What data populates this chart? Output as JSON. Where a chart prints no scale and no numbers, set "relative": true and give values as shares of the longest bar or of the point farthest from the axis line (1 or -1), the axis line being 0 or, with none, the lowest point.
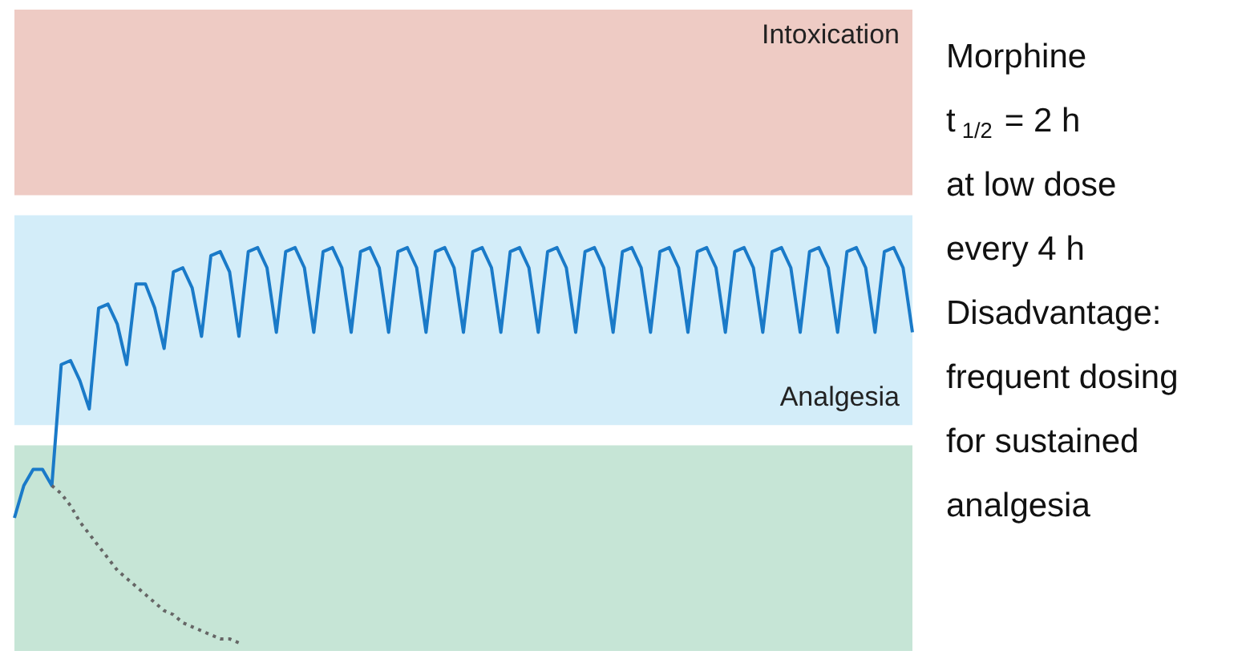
{
  "chart_data": {
    "type": "line",
    "relative": true,
    "categories": [
      null,
      null,
      null,
      null,
      null,
      null,
      null,
      null,
      null,
      null,
      null,
      null,
      null,
      null,
      null,
      null,
      null,
      null,
      null,
      null,
      null,
      null,
      null,
      null,
      null,
      null,
      null,
      null,
      null,
      null,
      null,
      null,
      null,
      null,
      null,
      null,
      null,
      null,
      null,
      null,
      null,
      null,
      null,
      null,
      null,
      null,
      null,
      null,
      null,
      null,
      null,
      null,
      null,
      null,
      null,
      null,
      null,
      null,
      null,
      null,
      null,
      null,
      null,
      null,
      null,
      null,
      null,
      null,
      null,
      null,
      null,
      null,
      null,
      null,
      null,
      null,
      null,
      null,
      null,
      null,
      null,
      null,
      null,
      null,
      null,
      null,
      null,
      null,
      null,
      null,
      null,
      null,
      null,
      null,
      null,
      null,
      null
    ],
    "series": [
      {
        "color": "#1a7ac8",
        "line_style": "solid",
        "values": [
          0.33,
          0.41,
          0.45,
          0.45,
          0.41,
          0.71,
          0.72,
          0.67,
          0.6,
          0.85,
          0.86,
          0.81,
          0.71,
          0.91,
          0.91,
          0.85,
          0.75,
          0.94,
          0.95,
          0.9,
          0.78,
          0.98,
          0.99,
          0.94,
          0.78,
          0.99,
          1.0,
          0.95,
          0.79,
          0.99,
          1.0,
          0.95,
          0.79,
          0.99,
          1.0,
          0.95,
          0.79,
          0.99,
          1.0,
          0.95,
          0.79,
          0.99,
          1.0,
          0.95,
          0.79,
          0.99,
          1.0,
          0.95,
          0.79,
          0.99,
          1.0,
          0.95,
          0.79,
          0.99,
          1.0,
          0.95,
          0.79,
          0.99,
          1.0,
          0.95,
          0.79,
          0.99,
          1.0,
          0.95,
          0.79,
          0.99,
          1.0,
          0.95,
          0.79,
          0.99,
          1.0,
          0.95,
          0.79,
          0.99,
          1.0,
          0.95,
          0.79,
          0.99,
          1.0,
          0.95,
          0.79,
          0.99,
          1.0,
          0.95,
          0.79,
          0.99,
          1.0,
          0.95,
          0.79,
          0.99,
          1.0,
          0.95,
          0.79,
          0.99,
          1.0,
          0.95,
          0.79
        ]
      },
      {
        "color": "#666666",
        "line_style": "dotted",
        "values": [
          null,
          null,
          null,
          null,
          0.41,
          0.39,
          0.36,
          0.32,
          0.29,
          0.26,
          0.23,
          0.2,
          0.18,
          0.16,
          0.14,
          0.12,
          0.1,
          0.09,
          0.07,
          0.06,
          0.05,
          0.04,
          0.03,
          0.03,
          0.02,
          null,
          null,
          null,
          null,
          null,
          null,
          null,
          null,
          null,
          null,
          null,
          null,
          null,
          null,
          null,
          null,
          null,
          null,
          null,
          null,
          null,
          null,
          null,
          null,
          null,
          null,
          null,
          null,
          null,
          null,
          null,
          null,
          null,
          null,
          null,
          null,
          null,
          null,
          null,
          null,
          null,
          null,
          null,
          null,
          null,
          null,
          null,
          null,
          null,
          null,
          null,
          null,
          null,
          null,
          null,
          null,
          null,
          null,
          null,
          null,
          null,
          null,
          null,
          null,
          null,
          null,
          null,
          null,
          null,
          null,
          null,
          null
        ]
      }
    ],
    "bands": [
      {
        "axis": "y",
        "from": 1.13,
        "to": 1.59,
        "label": "Intoxication",
        "color": "#eecbc4"
      },
      {
        "axis": "y",
        "from": 1.08,
        "to": 0.56,
        "label": "Analgesia",
        "color": "#d3edf9"
      },
      {
        "axis": "y",
        "from": 0,
        "to": 0.51,
        "color": "#c6e5d6"
      }
    ],
    "annotations": [
      "Morphine\nt$_{1/2}$ = 2 h\nat low dose\nevery 4 h\nDisadvantage:\nfrequent dosing\nfor sustained\nanalgesia"
    ],
    "marker": "none"
  }
}
